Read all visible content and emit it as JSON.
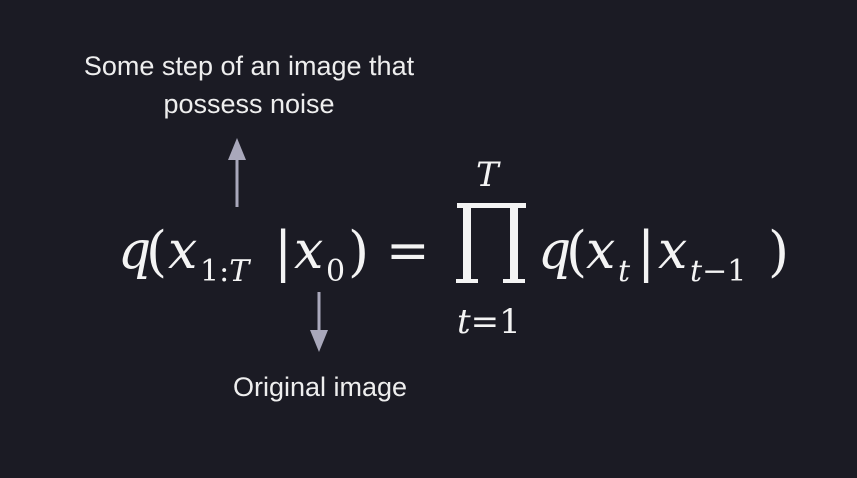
{
  "annotations": {
    "noisy_step": [
      "Some step of an image that",
      "possess noise"
    ],
    "original": "Original image"
  },
  "formula": {
    "lhs": {
      "q": "q",
      "open_paren": "(",
      "x": "x",
      "sub_range": "1:T",
      "bar": "|",
      "x0": "x",
      "sub_zero": "0",
      "close_paren": ")"
    },
    "equals": "=",
    "product": {
      "symbol": "∏",
      "upper": "T",
      "lower": "t=1"
    },
    "rhs": {
      "q": "q",
      "open_paren": "(",
      "xt": "x",
      "sub_t": "t",
      "bar": "|",
      "xt1": "x",
      "sub_t1": "t−1",
      "close_paren": ")"
    }
  },
  "colors": {
    "background": "#1b1b24",
    "text": "#f2f2f2",
    "arrow": "#a9a8bb"
  },
  "icons": {
    "up_arrow": "arrow-up-icon",
    "down_arrow": "arrow-down-icon"
  }
}
